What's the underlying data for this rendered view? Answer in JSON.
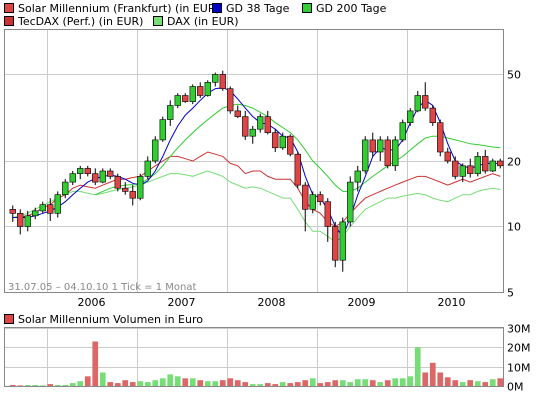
{
  "legend": {
    "series1": "Solar Millennium (Frankfurt) (in EUR)",
    "series2": "GD 38 Tage",
    "series3": "GD 200 Tage",
    "series4": "TecDAX (Perf.) (in EUR)",
    "series5": "DAX (in EUR)"
  },
  "colors": {
    "candle_up": "#33cc33",
    "candle_down": "#e04545",
    "gd38": "#0000cc",
    "gd200": "#33cc33",
    "tecdax": "#cc3333",
    "dax": "#77dd77",
    "volume_up": "#77dd77",
    "volume_down": "#dd6666",
    "grid": "#cccccc",
    "frame": "#888888"
  },
  "info_text": "31.07.05 – 04.10.10   1 Tick = 1 Monat",
  "volume_title": "Solar Millennium Volumen in Euro",
  "chart_data": [
    {
      "type": "candlestick",
      "yscale": "log",
      "ylim": [
        5,
        80
      ],
      "yticks": [
        5,
        10,
        20,
        50
      ],
      "ytick_labels": [
        "5",
        "10",
        "20",
        "50"
      ],
      "xtick_labels": [
        "2006",
        "2007",
        "2008",
        "2009",
        "2010"
      ],
      "grid": true,
      "legend_position": "top",
      "candles": [
        [
          12.0,
          12.5,
          10.5,
          11.5
        ],
        [
          11.5,
          12.0,
          9.2,
          10.0
        ],
        [
          10.0,
          11.8,
          9.5,
          11.2
        ],
        [
          11.2,
          12.2,
          10.8,
          11.8
        ],
        [
          11.8,
          13.0,
          11.5,
          12.6
        ],
        [
          12.6,
          13.5,
          10.6,
          11.5
        ],
        [
          11.5,
          14.5,
          11.0,
          14.0
        ],
        [
          14.0,
          16.5,
          13.5,
          16.0
        ],
        [
          16.0,
          18.0,
          15.5,
          17.5
        ],
        [
          17.5,
          19.0,
          16.5,
          18.5
        ],
        [
          18.5,
          19.0,
          17.0,
          17.5
        ],
        [
          17.5,
          18.5,
          15.5,
          16.0
        ],
        [
          16.0,
          18.5,
          15.8,
          18.0
        ],
        [
          18.0,
          18.5,
          16.5,
          17.0
        ],
        [
          17.0,
          17.5,
          14.5,
          15.0
        ],
        [
          15.0,
          16.0,
          14.0,
          14.5
        ],
        [
          14.5,
          15.5,
          12.5,
          13.5
        ],
        [
          13.5,
          17.5,
          13.2,
          17.0
        ],
        [
          17.0,
          21.0,
          16.5,
          20.0
        ],
        [
          20.0,
          26.0,
          19.5,
          25.0
        ],
        [
          25.0,
          32.0,
          24.5,
          31.0
        ],
        [
          31.0,
          38.0,
          29.0,
          36.0
        ],
        [
          36.0,
          41.0,
          35.0,
          40.0
        ],
        [
          40.0,
          41.0,
          37.0,
          37.5
        ],
        [
          37.5,
          45.0,
          36.5,
          44.0
        ],
        [
          44.0,
          46.0,
          39.0,
          40.0
        ],
        [
          40.0,
          47.0,
          39.5,
          46.0
        ],
        [
          46.0,
          51.0,
          44.0,
          50.0
        ],
        [
          50.0,
          52.0,
          42.0,
          43.0
        ],
        [
          43.0,
          44.0,
          33.0,
          34.0
        ],
        [
          34.0,
          36.0,
          31.5,
          32.0
        ],
        [
          32.0,
          34.0,
          25.0,
          26.0
        ],
        [
          26.0,
          29.0,
          24.0,
          28.0
        ],
        [
          28.0,
          33.0,
          27.0,
          32.0
        ],
        [
          32.0,
          34.0,
          26.5,
          27.0
        ],
        [
          27.0,
          28.0,
          22.0,
          23.0
        ],
        [
          23.0,
          27.0,
          22.5,
          26.0
        ],
        [
          26.0,
          26.5,
          21.0,
          21.5
        ],
        [
          21.5,
          22.0,
          15.0,
          15.5
        ],
        [
          15.5,
          16.0,
          9.5,
          12.0
        ],
        [
          12.0,
          14.5,
          11.5,
          14.0
        ],
        [
          14.0,
          14.5,
          12.5,
          13.0
        ],
        [
          13.0,
          13.5,
          8.5,
          10.0
        ],
        [
          10.0,
          10.5,
          6.5,
          7.0
        ],
        [
          7.0,
          11.0,
          6.2,
          10.5
        ],
        [
          10.5,
          17.0,
          10.0,
          16.0
        ],
        [
          16.0,
          19.0,
          14.5,
          18.0
        ],
        [
          18.0,
          26.0,
          17.5,
          25.0
        ],
        [
          25.0,
          27.0,
          21.0,
          22.0
        ],
        [
          22.0,
          26.0,
          20.0,
          25.0
        ],
        [
          25.0,
          26.0,
          18.5,
          19.0
        ],
        [
          19.0,
          26.0,
          18.0,
          25.0
        ],
        [
          25.0,
          31.0,
          24.5,
          30.0
        ],
        [
          30.0,
          35.0,
          29.0,
          34.0
        ],
        [
          34.0,
          42.0,
          33.5,
          40.0
        ],
        [
          40.0,
          46.0,
          34.0,
          35.0
        ],
        [
          35.0,
          36.0,
          29.0,
          30.0
        ],
        [
          30.0,
          31.0,
          21.0,
          22.0
        ],
        [
          22.0,
          23.0,
          19.5,
          20.0
        ],
        [
          20.0,
          21.0,
          16.5,
          17.0
        ],
        [
          17.0,
          19.5,
          16.0,
          19.0
        ],
        [
          19.0,
          20.5,
          16.8,
          17.5
        ],
        [
          17.5,
          22.0,
          17.0,
          21.0
        ],
        [
          21.0,
          22.5,
          17.5,
          18.0
        ],
        [
          18.0,
          20.5,
          17.8,
          20.0
        ],
        [
          20.0,
          20.5,
          18.5,
          19.0
        ]
      ],
      "gd38": [
        11.0,
        11.0,
        11.0,
        11.2,
        11.5,
        11.8,
        12.3,
        13.0,
        14.0,
        15.0,
        16.0,
        16.6,
        17.0,
        17.2,
        17.0,
        16.5,
        15.8,
        15.5,
        16.2,
        18.0,
        21.0,
        25.0,
        29.0,
        32.5,
        35.0,
        38.0,
        41.0,
        43.0,
        43.5,
        42.0,
        38.5,
        35.0,
        32.0,
        30.0,
        29.5,
        28.0,
        26.0,
        25.5,
        22.0,
        17.0,
        14.0,
        13.5,
        12.0,
        10.0,
        9.0,
        11.0,
        14.0,
        17.0,
        21.0,
        23.0,
        22.5,
        22.5,
        25.0,
        30.0,
        35.0,
        38.0,
        36.0,
        30.0,
        24.0,
        20.0,
        19.0,
        18.5,
        19.0,
        19.5,
        19.5,
        19.5
      ],
      "gd200": [
        null,
        null,
        null,
        null,
        null,
        null,
        null,
        null,
        null,
        null,
        null,
        14.0,
        14.5,
        15.0,
        15.3,
        15.5,
        15.6,
        15.8,
        16.5,
        17.5,
        19.0,
        21.0,
        23.0,
        25.0,
        27.0,
        29.0,
        31.0,
        33.0,
        35.0,
        36.0,
        36.5,
        36.0,
        35.0,
        33.5,
        32.0,
        30.0,
        28.5,
        27.0,
        25.0,
        22.5,
        20.0,
        18.5,
        17.0,
        15.5,
        14.5,
        14.5,
        15.0,
        16.0,
        17.0,
        18.0,
        19.0,
        20.0,
        21.0,
        22.5,
        24.0,
        25.5,
        26.0,
        26.0,
        25.5,
        25.0,
        24.5,
        24.0,
        23.8,
        23.5,
        23.2,
        23.0
      ],
      "tecdax": [
        11.0,
        11.0,
        11.2,
        11.6,
        12.2,
        12.6,
        13.5,
        14.0,
        15.0,
        15.5,
        15.2,
        15.0,
        15.5,
        16.0,
        16.5,
        16.5,
        16.8,
        17.0,
        18.0,
        19.0,
        20.0,
        21.0,
        21.0,
        20.5,
        20.0,
        21.0,
        22.0,
        21.5,
        21.0,
        19.5,
        19.0,
        17.5,
        18.0,
        18.0,
        17.0,
        16.5,
        16.5,
        16.5,
        15.0,
        13.0,
        12.0,
        11.5,
        10.5,
        10.0,
        10.5,
        11.5,
        12.5,
        13.5,
        14.0,
        14.5,
        15.0,
        15.5,
        16.0,
        16.5,
        17.0,
        17.0,
        16.5,
        16.0,
        15.5,
        16.0,
        16.5,
        16.0,
        16.5,
        17.0,
        17.5,
        17.0
      ],
      "dax": [
        11.0,
        11.2,
        11.5,
        12.0,
        12.5,
        13.0,
        13.5,
        14.0,
        14.5,
        14.5,
        14.2,
        14.0,
        14.2,
        14.5,
        14.8,
        15.0,
        15.2,
        15.5,
        16.0,
        16.5,
        17.0,
        17.5,
        17.5,
        17.3,
        17.0,
        17.5,
        18.0,
        17.5,
        17.0,
        16.0,
        15.5,
        15.0,
        15.2,
        15.0,
        14.5,
        14.0,
        13.5,
        13.5,
        12.0,
        10.5,
        9.5,
        9.5,
        9.0,
        8.5,
        9.0,
        10.0,
        11.0,
        12.0,
        12.5,
        13.0,
        13.5,
        13.5,
        13.8,
        14.0,
        14.2,
        14.0,
        13.5,
        13.2,
        13.0,
        13.5,
        14.0,
        14.0,
        14.5,
        14.8,
        15.0,
        14.8
      ]
    },
    {
      "type": "bar",
      "title": "Solar Millennium Volumen in Euro",
      "ylim": [
        0,
        30
      ],
      "yticks": [
        0,
        10,
        20,
        30
      ],
      "ytick_labels": [
        "0M",
        "10M",
        "20M",
        "30M"
      ],
      "values": [
        0.5,
        0.3,
        0.5,
        0.5,
        0.3,
        1.0,
        0.5,
        0.5,
        1.5,
        2.5,
        5.0,
        23.0,
        7.0,
        2.0,
        1.5,
        3.0,
        2.0,
        2.5,
        2.0,
        3.0,
        4.0,
        6.0,
        5.0,
        4.0,
        4.0,
        3.0,
        2.5,
        2.5,
        3.0,
        4.0,
        3.0,
        2.0,
        1.0,
        1.0,
        1.5,
        1.0,
        2.0,
        1.5,
        2.0,
        3.0,
        4.0,
        1.5,
        2.0,
        3.0,
        3.0,
        2.0,
        3.5,
        3.5,
        3.0,
        2.0,
        3.0,
        4.0,
        4.0,
        5.0,
        20.0,
        7.0,
        12.0,
        7.0,
        4.5,
        3.0,
        2.0,
        3.0,
        2.5,
        2.0,
        3.5,
        4.0
      ]
    }
  ]
}
